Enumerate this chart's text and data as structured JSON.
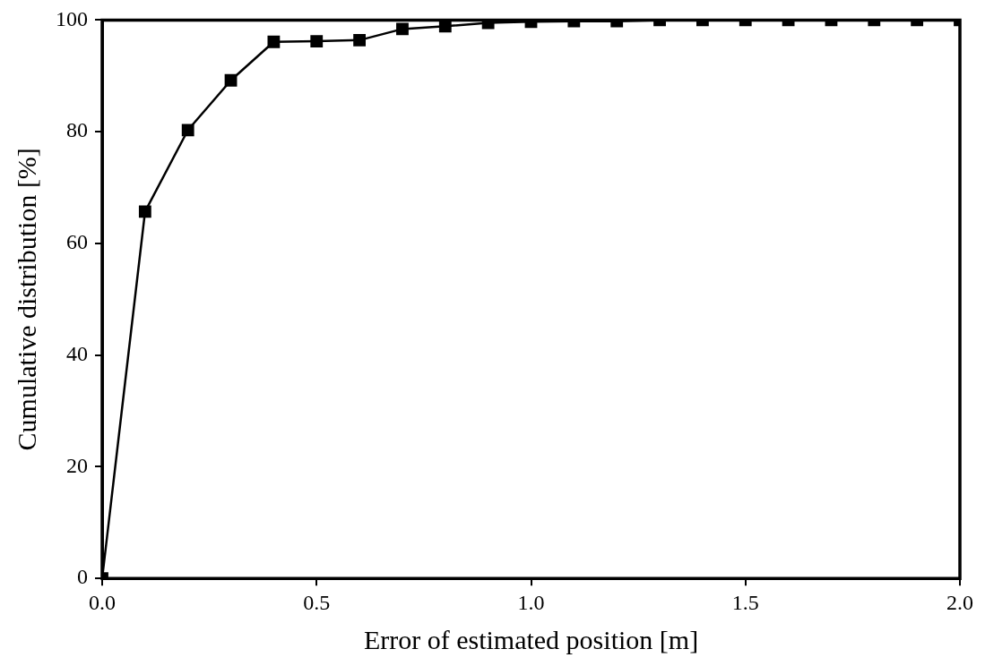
{
  "chart_data": {
    "type": "line",
    "xlabel": "Error of estimated position [m]",
    "ylabel": "Cumulative distribution [%]",
    "x": [
      0,
      0.1,
      0.2,
      0.3,
      0.4,
      0.5,
      0.6,
      0.7,
      0.8,
      0.9,
      1.0,
      1.1,
      1.2,
      1.3,
      1.4,
      1.5,
      1.6,
      1.7,
      1.8,
      1.9,
      2.0
    ],
    "series": [
      {
        "color": "#000000",
        "values": [
          0,
          65.7,
          80.3,
          89.2,
          96.1,
          96.2,
          96.4,
          98.4,
          98.9,
          99.5,
          99.7,
          99.8,
          99.8,
          100,
          100,
          100,
          100,
          100,
          100,
          100,
          100
        ]
      }
    ],
    "xlim": [
      0,
      2
    ],
    "xticks": [
      {
        "value": 0,
        "label": "0.0"
      },
      {
        "value": 0.5,
        "label": "0.5"
      },
      {
        "value": 1,
        "label": "1.0"
      },
      {
        "value": 1.5,
        "label": "1.5"
      },
      {
        "value": 2,
        "label": "2.0"
      }
    ],
    "ylim": [
      0,
      100
    ],
    "yticks": [
      0,
      20,
      40,
      60,
      80,
      100
    ],
    "grid": false,
    "legend": false,
    "marker": "square",
    "line_style": "solid"
  }
}
